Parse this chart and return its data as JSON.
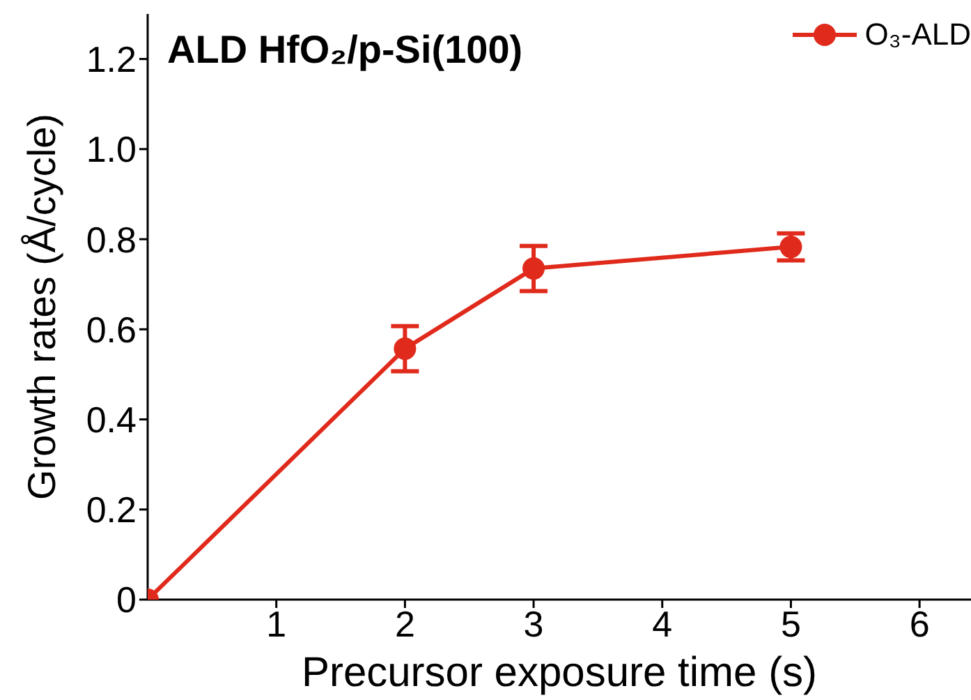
{
  "chart_data": {
    "type": "line",
    "title": "ALD HfO₂/p-Si(100)",
    "xlabel": "Precursor exposure time (s)",
    "ylabel": "Growth rates (Å/cycle)",
    "x": [
      0,
      2,
      3,
      5
    ],
    "series": [
      {
        "name": "O₃-ALD",
        "color": "#e02a1c",
        "values": [
          0,
          0.557,
          0.735,
          0.783
        ],
        "errors": [
          null,
          0.05,
          0.05,
          0.03
        ]
      }
    ],
    "xlim": [
      0,
      6.4
    ],
    "xticks": [
      1,
      2,
      3,
      4,
      5,
      6
    ],
    "ylim": [
      0,
      1.3
    ],
    "yticks": [
      0,
      0.2,
      0.4,
      0.6,
      0.8,
      {
        "value": 1,
        "label": "1.0"
      },
      1.2
    ],
    "grid": false,
    "legend": "top right",
    "marker": "circle",
    "line_style": "solid"
  }
}
